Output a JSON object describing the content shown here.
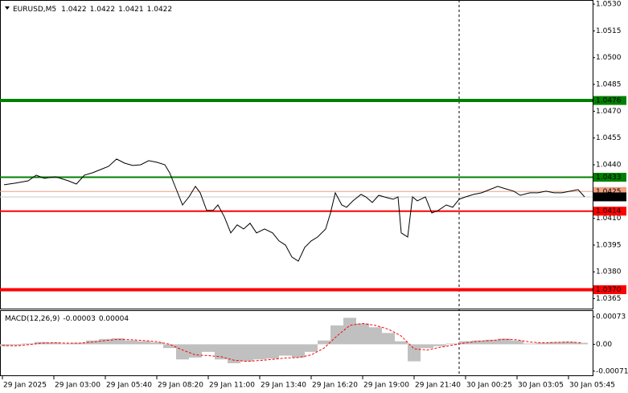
{
  "chart_data": [
    {
      "type": "line",
      "title": "EURUSD,M5",
      "ohlc": [
        1.0422,
        1.0422,
        1.0421,
        1.0422
      ],
      "color": "#000000",
      "x": [
        1,
        8,
        16,
        21,
        26,
        33,
        41,
        46,
        51,
        56,
        61,
        66,
        71,
        76,
        81,
        86,
        91,
        96,
        101,
        104,
        108,
        112,
        116,
        120,
        123,
        127,
        131,
        134,
        138,
        142,
        146,
        150,
        154,
        158,
        163,
        168,
        172,
        176,
        180,
        184,
        188,
        192,
        196,
        201,
        204,
        207,
        211,
        214,
        218,
        223,
        226,
        230,
        234,
        239,
        243,
        246,
        248,
        252,
        255,
        258,
        263,
        267,
        271,
        276,
        280,
        284,
        288,
        293,
        298,
        303,
        308,
        313,
        318,
        322,
        328,
        333,
        338,
        343,
        348,
        353,
        358,
        362
      ],
      "values": [
        1.04288,
        1.04297,
        1.0431,
        1.04342,
        1.04324,
        1.04333,
        1.0431,
        1.04292,
        1.04342,
        1.04355,
        1.04373,
        1.04391,
        1.04432,
        1.04409,
        1.04396,
        1.044,
        1.04423,
        1.04414,
        1.044,
        1.04355,
        1.04265,
        1.04175,
        1.0422,
        1.04279,
        1.04243,
        1.04144,
        1.04144,
        1.04175,
        1.04108,
        1.04018,
        1.04063,
        1.0404,
        1.04072,
        1.04018,
        1.0404,
        1.04018,
        1.03973,
        1.0395,
        1.03883,
        1.0386,
        1.03937,
        1.03973,
        1.03995,
        1.0404,
        1.0413,
        1.04243,
        1.04175,
        1.04162,
        1.04198,
        1.04234,
        1.0422,
        1.04189,
        1.04229,
        1.04216,
        1.04207,
        1.0422,
        1.04018,
        1.03995,
        1.0422,
        1.04198,
        1.0422,
        1.0413,
        1.04144,
        1.04175,
        1.04162,
        1.04207,
        1.0422,
        1.04234,
        1.04243,
        1.04261,
        1.04279,
        1.04265,
        1.04252,
        1.04229,
        1.04243,
        1.04243,
        1.04252,
        1.04243,
        1.04243,
        1.04252,
        1.04261,
        1.0422
      ],
      "xlim": [
        -1.5,
        367
      ],
      "ylim": [
        1.03594,
        1.05323
      ],
      "yticks": [
        {
          "value": 1.053,
          "label": "1.0530"
        },
        1.0515,
        {
          "value": 1.05,
          "label": "1.0500"
        },
        1.0485,
        {
          "value": 1.047,
          "label": "1.0470"
        },
        1.0455,
        {
          "value": 1.044,
          "label": "1.0440"
        },
        {
          "value": 1.041,
          "label": "1.0410"
        },
        1.0395,
        {
          "value": 1.038,
          "label": "1.0380"
        },
        1.0365
      ],
      "xticks": [
        {
          "value": 0,
          "label": "29 Jan 2025"
        },
        {
          "value": 32,
          "label": "29 Jan 03:00"
        },
        {
          "value": 64,
          "label": "29 Jan 05:40"
        },
        {
          "value": 96,
          "label": "29 Jan 08:20"
        },
        {
          "value": 128,
          "label": "29 Jan 11:00"
        },
        {
          "value": 160,
          "label": "29 Jan 13:40"
        },
        {
          "value": 192,
          "label": "29 Jan 16:20"
        },
        {
          "value": 224,
          "label": "29 Jan 19:00"
        },
        {
          "value": 256,
          "label": "29 Jan 21:40"
        },
        {
          "value": 288,
          "label": "30 Jan 00:25"
        },
        {
          "value": 320,
          "label": "30 Jan 03:05"
        },
        {
          "value": 352,
          "label": "30 Jan 05:45"
        }
      ],
      "levels": [
        {
          "value": 1.0476,
          "color": "#008000",
          "width": 4
        },
        {
          "value": 1.0433,
          "color": "#008000",
          "width": 2
        },
        {
          "value": 1.0425,
          "color": "#f0a080",
          "width": 1
        },
        {
          "value": 1.0422,
          "color": "#000000",
          "width": 1
        },
        {
          "value": 1.0414,
          "color": "#ff0000",
          "width": 2
        },
        {
          "value": 1.037,
          "label": "1.0370",
          "color": "#ff0000",
          "width": 4
        }
      ]
    },
    {
      "type": "bar",
      "title": "MACD(12,26,9)",
      "readout": [
        -3e-05,
        4e-05
      ],
      "color": "#c0c0c0",
      "signal_color": "#ff0000",
      "x": [
        0,
        8,
        16,
        24,
        32,
        40,
        48,
        56,
        64,
        72,
        80,
        88,
        96,
        104,
        112,
        120,
        128,
        136,
        144,
        152,
        160,
        168,
        176,
        184,
        192,
        200,
        208,
        216,
        224,
        232,
        240,
        248,
        256,
        264,
        272,
        280,
        288,
        296,
        304,
        312,
        320,
        328,
        336,
        344,
        352,
        360
      ],
      "values": [
        -5e-05,
        -3e-05,
        2e-05,
        6e-05,
        5e-05,
        2e-05,
        4e-05,
        0.0001,
        0.00014,
        0.00016,
        0.0001,
        8e-05,
        5e-05,
        -0.0001,
        -0.0004,
        -0.00035,
        -0.0002,
        -0.0004,
        -0.0005,
        -0.00045,
        -0.0004,
        -0.00038,
        -0.0003,
        -0.00035,
        -0.0002,
        0.0001,
        0.0005,
        0.0007,
        0.00055,
        0.00045,
        0.0003,
        8e-05,
        -0.00045,
        -0.0001,
        -5e-05,
        2e-05,
        8e-05,
        0.0001,
        0.00012,
        0.00015,
        0.0001,
        2e-05,
        4e-05,
        6e-05,
        7e-05,
        4e-05
      ],
      "signal": [
        -3e-05,
        -4e-05,
        -1e-05,
        3e-05,
        4e-05,
        3e-05,
        3e-05,
        6e-05,
        0.0001,
        0.00013,
        0.00012,
        0.0001,
        7e-05,
        0,
        -0.00015,
        -0.00028,
        -0.0003,
        -0.00033,
        -0.00042,
        -0.00045,
        -0.00043,
        -0.0004,
        -0.00036,
        -0.00035,
        -0.00028,
        -0.0001,
        0.00022,
        0.0005,
        0.00055,
        0.0005,
        0.0004,
        0.00022,
        -0.00012,
        -0.00015,
        -8e-05,
        -2e-05,
        4e-05,
        8e-05,
        0.0001,
        0.00013,
        0.00012,
        6e-05,
        4e-05,
        5e-05,
        6e-05,
        4e-05
      ],
      "xlim": [
        -1.5,
        367
      ],
      "ylim": [
        -0.00082,
        0.00088
      ],
      "yticks": [
        0.00073,
        {
          "value": 0,
          "label": "0.00"
        },
        -0.00071
      ]
    }
  ]
}
